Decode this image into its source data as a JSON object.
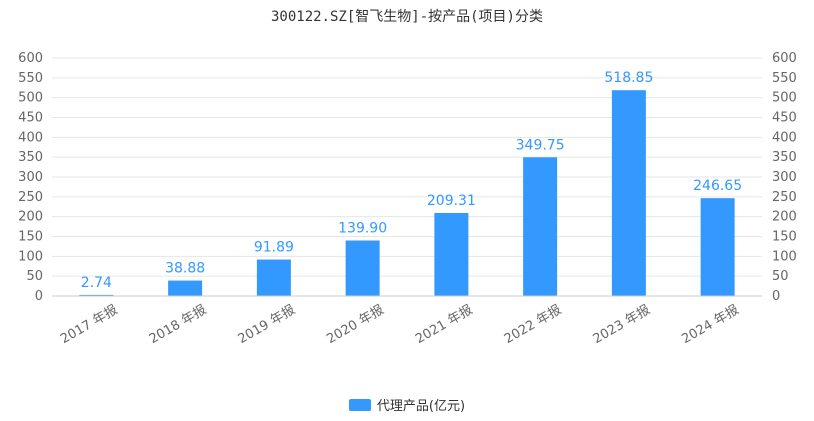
{
  "colors": {
    "bar": "#3399ff",
    "label": "#3399ff",
    "grid": "#e6e6e6",
    "axis_text": "#666666",
    "title": "#333333"
  },
  "chart_data": {
    "type": "bar",
    "title": "300122.SZ[智飞生物]-按产品(项目)分类",
    "categories": [
      "2017 年报",
      "2018 年报",
      "2019 年报",
      "2020 年报",
      "2021 年报",
      "2022 年报",
      "2023 年报",
      "2024 年报"
    ],
    "series": [
      {
        "name": "代理产品(亿元)",
        "values": [
          2.74,
          38.88,
          91.89,
          139.9,
          209.31,
          349.75,
          518.85,
          246.65
        ]
      }
    ],
    "value_labels": [
      "2.74",
      "38.88",
      "91.89",
      "139.90",
      "209.31",
      "349.75",
      "518.85",
      "246.65"
    ],
    "ylim": [
      0,
      600
    ],
    "yticks": [
      0,
      50,
      100,
      150,
      200,
      250,
      300,
      350,
      400,
      450,
      500,
      550,
      600
    ],
    "grid": true,
    "dual_y_axis": true,
    "legend_position": "bottom-center"
  }
}
